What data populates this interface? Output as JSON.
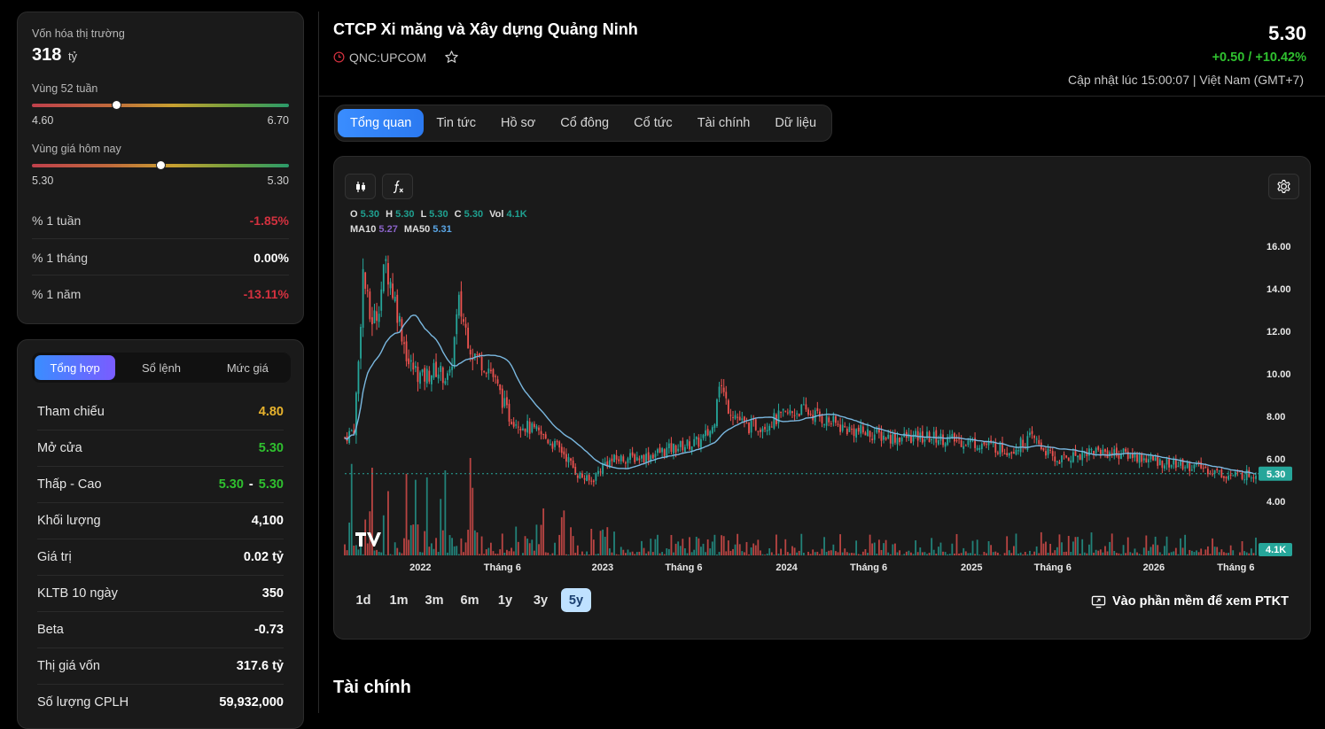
{
  "stats": {
    "market_cap_label": "Vốn hóa thị trường",
    "market_cap_value": "318",
    "market_cap_unit": "tỷ",
    "range52_label": "Vùng 52 tuần",
    "range52_low": "4.60",
    "range52_high": "6.70",
    "range52_position": 0.33,
    "today_label": "Vùng giá hôm nay",
    "today_low": "5.30",
    "today_high": "5.30",
    "today_position": 0.5,
    "rows": [
      {
        "label": "% 1 tuần",
        "value": "-1.85%"
      },
      {
        "label": "% 1 tháng",
        "value": "0.00%"
      },
      {
        "label": "% 1 năm",
        "value": "-13.11%"
      }
    ]
  },
  "summary": {
    "tabs": [
      "Tổng hợp",
      "Sổ lệnh",
      "Mức giá"
    ],
    "rows": [
      {
        "label": "Tham chiếu",
        "value": "4.80"
      },
      {
        "label": "Mở cửa",
        "value": "5.30"
      },
      {
        "label": "Thấp - Cao",
        "low": "5.30",
        "high": "5.30"
      },
      {
        "label": "Khối lượng",
        "value": "4,100"
      },
      {
        "label": "Giá trị",
        "value": "0.02 tỷ"
      },
      {
        "label": "KLTB 10 ngày",
        "value": "350"
      },
      {
        "label": "Beta",
        "value": "-0.73"
      },
      {
        "label": "Thị giá vốn",
        "value": "317.6 tỷ"
      },
      {
        "label": "Số lượng CPLH",
        "value": "59,932,000"
      }
    ]
  },
  "header": {
    "company": "CTCP Xi măng và Xây dựng Quảng Ninh",
    "ticker": "QNC:UPCOM",
    "price": "5.30",
    "change": "+0.50 / +10.42%",
    "updated": "Cập nhật lúc 15:00:07 | Việt Nam (GMT+7)"
  },
  "tabs": [
    "Tổng quan",
    "Tin tức",
    "Hồ sơ",
    "Cổ đông",
    "Cổ tức",
    "Tài chính",
    "Dữ liệu"
  ],
  "chart": {
    "legend": {
      "O": "5.30",
      "H": "5.30",
      "L": "5.30",
      "C": "5.30",
      "Vol": "4.1K",
      "MA10": "5.27",
      "MA50": "5.31"
    },
    "ranges": [
      "1d",
      "1m",
      "3m",
      "6m",
      "1y",
      "3y",
      "5y"
    ],
    "active_range": "5y",
    "ptkt_label": "Vào phần mềm để xem PTKT",
    "colors": {
      "up": "#26a69a",
      "down": "#ef5350",
      "ma": "#7ab8e0",
      "bg": "#1a1a1a"
    }
  },
  "chart_data": {
    "type": "line",
    "y_ticks": [
      "16.00",
      "14.00",
      "12.00",
      "10.00",
      "8.00",
      "6.00",
      "4.00"
    ],
    "x_ticks": [
      "2022",
      "Tháng 6",
      "2023",
      "Tháng 6",
      "2024",
      "Tháng 6",
      "2025",
      "Tháng 6",
      "2026",
      "Tháng 6"
    ],
    "ylim": [
      4,
      16
    ],
    "last_price_label": "5.30",
    "volume_label": "4.1K",
    "price_series": [
      {
        "t": 0.0,
        "v": 7.0
      },
      {
        "t": 0.01,
        "v": 7.4
      },
      {
        "t": 0.015,
        "v": 10.5
      },
      {
        "t": 0.02,
        "v": 14.8
      },
      {
        "t": 0.028,
        "v": 12.5
      },
      {
        "t": 0.035,
        "v": 12.8
      },
      {
        "t": 0.045,
        "v": 15.2
      },
      {
        "t": 0.055,
        "v": 13.5
      },
      {
        "t": 0.07,
        "v": 10.5
      },
      {
        "t": 0.085,
        "v": 9.8
      },
      {
        "t": 0.1,
        "v": 10.2
      },
      {
        "t": 0.115,
        "v": 9.7
      },
      {
        "t": 0.125,
        "v": 13.3
      },
      {
        "t": 0.14,
        "v": 11.0
      },
      {
        "t": 0.16,
        "v": 10.2
      },
      {
        "t": 0.18,
        "v": 8.0
      },
      {
        "t": 0.2,
        "v": 7.5
      },
      {
        "t": 0.22,
        "v": 7.0
      },
      {
        "t": 0.24,
        "v": 6.3
      },
      {
        "t": 0.255,
        "v": 5.3
      },
      {
        "t": 0.27,
        "v": 4.9
      },
      {
        "t": 0.285,
        "v": 5.8
      },
      {
        "t": 0.3,
        "v": 6.0
      },
      {
        "t": 0.33,
        "v": 6.1
      },
      {
        "t": 0.36,
        "v": 6.5
      },
      {
        "t": 0.39,
        "v": 6.8
      },
      {
        "t": 0.405,
        "v": 7.5
      },
      {
        "t": 0.41,
        "v": 9.8
      },
      {
        "t": 0.42,
        "v": 8.5
      },
      {
        "t": 0.44,
        "v": 7.5
      },
      {
        "t": 0.46,
        "v": 7.6
      },
      {
        "t": 0.48,
        "v": 8.0
      },
      {
        "t": 0.5,
        "v": 8.3
      },
      {
        "t": 0.52,
        "v": 8.0
      },
      {
        "t": 0.55,
        "v": 7.4
      },
      {
        "t": 0.6,
        "v": 7.0
      },
      {
        "t": 0.65,
        "v": 7.0
      },
      {
        "t": 0.7,
        "v": 6.7
      },
      {
        "t": 0.73,
        "v": 6.4
      },
      {
        "t": 0.755,
        "v": 7.0
      },
      {
        "t": 0.78,
        "v": 5.9
      },
      {
        "t": 0.82,
        "v": 6.4
      },
      {
        "t": 0.86,
        "v": 6.2
      },
      {
        "t": 0.9,
        "v": 5.8
      },
      {
        "t": 0.94,
        "v": 5.6
      },
      {
        "t": 0.97,
        "v": 5.2
      },
      {
        "t": 1.0,
        "v": 5.3
      }
    ]
  }
}
